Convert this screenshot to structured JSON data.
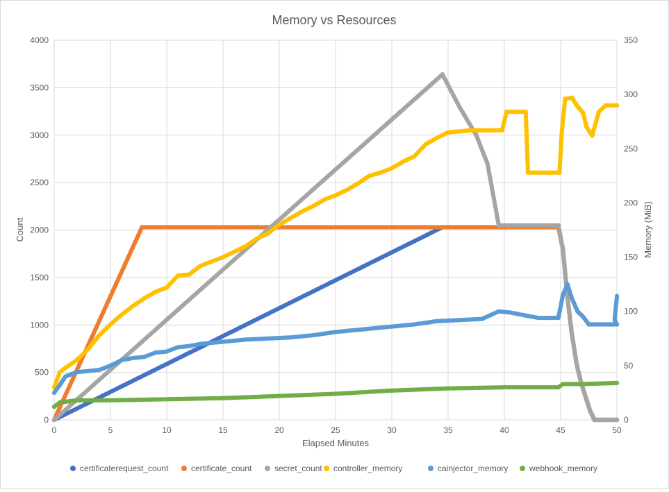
{
  "chart_data": {
    "type": "scatter",
    "title": "Memory vs Resources",
    "xlabel": "Elapsed Minutes",
    "ylabel": "Count",
    "y2label": "Memory (MiB)",
    "xlim": [
      0,
      50
    ],
    "ylim": [
      0,
      4000
    ],
    "y2lim": [
      0,
      350
    ],
    "xticks": [
      "0",
      "5",
      "10",
      "15",
      "20",
      "25",
      "30",
      "35",
      "40",
      "45",
      "50"
    ],
    "yticks": [
      "0",
      "500",
      "1000",
      "1500",
      "2000",
      "2500",
      "3000",
      "3500",
      "4000"
    ],
    "y2ticks": [
      "0",
      "50",
      "100",
      "150",
      "200",
      "250",
      "300",
      "350"
    ],
    "grid": true,
    "legend_position": "bottom",
    "series": [
      {
        "name": "certificaterequest_count",
        "axis": "left",
        "color": "#4472C4",
        "points": [
          [
            0,
            0
          ],
          [
            34.5,
            2030
          ],
          [
            44.8,
            2030
          ],
          [
            45.2,
            1800
          ],
          [
            45.6,
            1300
          ],
          [
            46.0,
            900
          ],
          [
            46.4,
            600
          ],
          [
            46.8,
            400
          ],
          [
            47.2,
            250
          ],
          [
            47.6,
            100
          ],
          [
            48,
            0
          ],
          [
            50,
            0
          ]
        ]
      },
      {
        "name": "certificate_count",
        "axis": "left",
        "color": "#ED7D31",
        "points": [
          [
            0,
            0
          ],
          [
            7.8,
            2030
          ],
          [
            44.8,
            2030
          ],
          [
            45.2,
            1800
          ],
          [
            45.6,
            1300
          ],
          [
            46.0,
            900
          ],
          [
            46.4,
            600
          ],
          [
            46.8,
            400
          ],
          [
            47.2,
            250
          ],
          [
            47.6,
            100
          ],
          [
            48,
            0
          ],
          [
            50,
            0
          ]
        ]
      },
      {
        "name": "secret_count",
        "axis": "left",
        "color": "#A5A5A5",
        "points": [
          [
            0,
            0
          ],
          [
            34.5,
            3640
          ],
          [
            36,
            3300
          ],
          [
            37.5,
            3000
          ],
          [
            38.5,
            2700
          ],
          [
            39.5,
            2050
          ],
          [
            44.8,
            2050
          ],
          [
            45.2,
            1800
          ],
          [
            45.6,
            1300
          ],
          [
            46.0,
            900
          ],
          [
            46.4,
            600
          ],
          [
            46.8,
            400
          ],
          [
            47.2,
            250
          ],
          [
            47.6,
            100
          ],
          [
            48,
            0
          ],
          [
            50,
            0
          ]
        ]
      },
      {
        "name": "controller_memory",
        "axis": "right",
        "color": "#FFC000",
        "points": [
          [
            0,
            30
          ],
          [
            0.5,
            44
          ],
          [
            1,
            48
          ],
          [
            2,
            55
          ],
          [
            3,
            65
          ],
          [
            4,
            78
          ],
          [
            5,
            88
          ],
          [
            6,
            97
          ],
          [
            7,
            105
          ],
          [
            8,
            112
          ],
          [
            9,
            118
          ],
          [
            10,
            122
          ],
          [
            11,
            133
          ],
          [
            12,
            134
          ],
          [
            13,
            142
          ],
          [
            14,
            146
          ],
          [
            15,
            150
          ],
          [
            16,
            155
          ],
          [
            17,
            160
          ],
          [
            18,
            167
          ],
          [
            19,
            172
          ],
          [
            20,
            180
          ],
          [
            21,
            186
          ],
          [
            22,
            192
          ],
          [
            23,
            197
          ],
          [
            24,
            203
          ],
          [
            25,
            207
          ],
          [
            26,
            212
          ],
          [
            27,
            218
          ],
          [
            28,
            225
          ],
          [
            29,
            228
          ],
          [
            30,
            232
          ],
          [
            31,
            238
          ],
          [
            32,
            243
          ],
          [
            33,
            254
          ],
          [
            34,
            260
          ],
          [
            35,
            265
          ],
          [
            36,
            266
          ],
          [
            37,
            267
          ],
          [
            38,
            267
          ],
          [
            39,
            267
          ],
          [
            39.8,
            267
          ],
          [
            40.2,
            284
          ],
          [
            41.9,
            284
          ],
          [
            42.1,
            228
          ],
          [
            44.9,
            228
          ],
          [
            45.1,
            265
          ],
          [
            45.4,
            296
          ],
          [
            46,
            297
          ],
          [
            46.5,
            289
          ],
          [
            47,
            283
          ],
          [
            47.3,
            270
          ],
          [
            47.8,
            262
          ],
          [
            48.4,
            284
          ],
          [
            49,
            290
          ],
          [
            50,
            290
          ]
        ]
      },
      {
        "name": "cainjector_memory",
        "axis": "right",
        "color": "#5B9BD5",
        "points": [
          [
            0,
            25
          ],
          [
            0.5,
            32
          ],
          [
            1,
            40
          ],
          [
            2,
            44
          ],
          [
            4,
            46
          ],
          [
            5,
            50
          ],
          [
            6,
            55
          ],
          [
            7,
            57
          ],
          [
            8,
            58
          ],
          [
            9,
            62
          ],
          [
            10,
            63
          ],
          [
            11,
            67
          ],
          [
            12,
            68
          ],
          [
            13,
            70
          ],
          [
            14,
            71
          ],
          [
            15,
            72
          ],
          [
            17,
            74
          ],
          [
            19,
            75
          ],
          [
            21,
            76
          ],
          [
            23,
            78
          ],
          [
            25,
            81
          ],
          [
            27,
            83
          ],
          [
            29,
            85
          ],
          [
            30,
            86
          ],
          [
            32,
            88
          ],
          [
            34,
            91
          ],
          [
            36,
            92
          ],
          [
            38,
            93
          ],
          [
            39.5,
            100
          ],
          [
            40.5,
            99
          ],
          [
            41.5,
            97
          ],
          [
            43,
            94
          ],
          [
            44.8,
            94
          ],
          [
            45.2,
            115
          ],
          [
            45.6,
            125
          ],
          [
            46,
            112
          ],
          [
            46.5,
            100
          ],
          [
            47,
            95
          ],
          [
            47.5,
            88
          ],
          [
            50,
            88
          ],
          [
            49.8,
            92
          ],
          [
            50,
            114
          ]
        ]
      },
      {
        "name": "webhook_memory",
        "axis": "right",
        "color": "#70AD47",
        "points": [
          [
            0,
            12
          ],
          [
            0.5,
            16
          ],
          [
            2,
            18
          ],
          [
            5,
            18
          ],
          [
            10,
            19
          ],
          [
            15,
            20
          ],
          [
            20,
            22
          ],
          [
            25,
            24
          ],
          [
            30,
            27
          ],
          [
            35,
            29
          ],
          [
            40,
            30
          ],
          [
            44.8,
            30
          ],
          [
            45.2,
            33
          ],
          [
            47,
            33
          ],
          [
            50,
            34
          ]
        ]
      }
    ]
  }
}
